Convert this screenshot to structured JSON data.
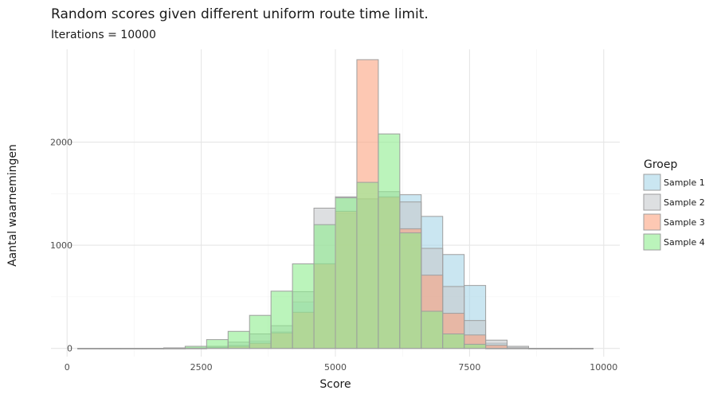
{
  "chart_data": {
    "type": "bar",
    "subtype": "histogram-overlay",
    "title": "Random scores given different uniform route time limit.",
    "subtitle": "Iterations = 10000",
    "xlabel": "Score",
    "ylabel": "Aantal waarnemingen",
    "xlim": [
      -300,
      10300
    ],
    "ylim": [
      -80,
      2900
    ],
    "x_ticks": [
      0,
      2500,
      5000,
      7500,
      10000
    ],
    "x_tick_labels": [
      "0",
      "2500",
      "5000",
      "7500",
      "10000"
    ],
    "y_ticks": [
      0,
      1000,
      2000
    ],
    "y_tick_labels": [
      "0",
      "1000",
      "2000"
    ],
    "grid": true,
    "legend": {
      "title": "Groep",
      "position": "right"
    },
    "bin_width": 400,
    "bin_starts": [
      200,
      600,
      1000,
      1400,
      1800,
      2200,
      2600,
      3000,
      3400,
      3800,
      4200,
      4600,
      5000,
      5400,
      5800,
      6200,
      6600,
      7000,
      7400,
      7800,
      8200,
      8600,
      9000,
      9400
    ],
    "series": [
      {
        "name": "Sample 1",
        "color": "#a6d5e8",
        "values": [
          0,
          0,
          0,
          0,
          0,
          2,
          10,
          30,
          70,
          160,
          450,
          820,
          1310,
          1450,
          1460,
          1490,
          1280,
          910,
          610,
          50,
          5,
          0,
          0,
          0
        ]
      },
      {
        "name": "Sample 2",
        "color": "#c6cacd",
        "values": [
          0,
          0,
          0,
          0,
          2,
          5,
          20,
          60,
          140,
          220,
          550,
          1360,
          1470,
          1450,
          1520,
          1420,
          970,
          600,
          270,
          80,
          20,
          0,
          0,
          0
        ]
      },
      {
        "name": "Sample 3",
        "color": "#fca481",
        "values": [
          0,
          0,
          0,
          0,
          0,
          0,
          5,
          20,
          50,
          150,
          350,
          820,
          1330,
          2800,
          1470,
          1160,
          710,
          340,
          130,
          30,
          5,
          0,
          0,
          0
        ]
      },
      {
        "name": "Sample 4",
        "color": "#8ded8d",
        "values": [
          0,
          0,
          0,
          0,
          5,
          20,
          85,
          165,
          320,
          555,
          820,
          1200,
          1460,
          1610,
          2080,
          1120,
          360,
          140,
          40,
          0,
          0,
          0,
          0,
          0
        ]
      }
    ]
  }
}
